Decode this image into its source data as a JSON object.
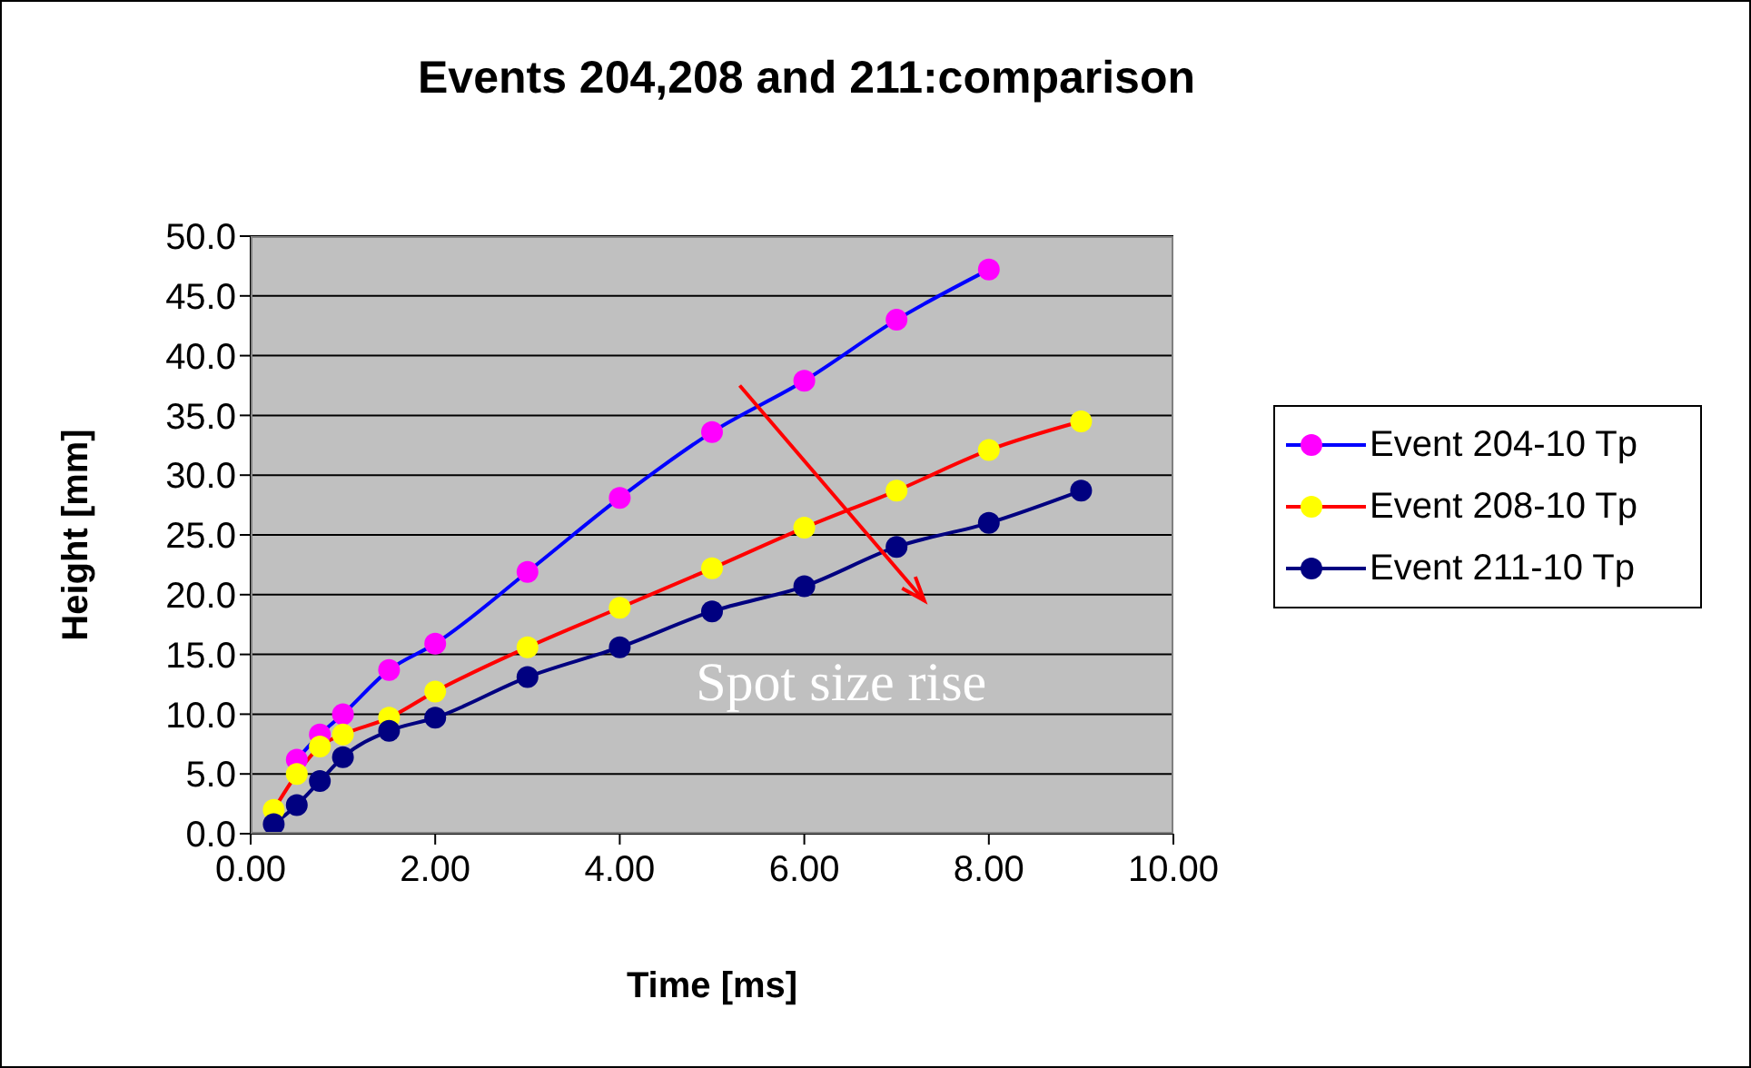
{
  "chart_data": {
    "type": "line",
    "title": "Events 204,208 and 211:comparison",
    "xlabel": "Time [ms]",
    "ylabel": "Height [mm]",
    "x": [
      0.25,
      0.5,
      0.75,
      1,
      1.5,
      2,
      3,
      4,
      5,
      6,
      7,
      8,
      9
    ],
    "series": [
      {
        "name": "Event 204-10 Tp",
        "color": "#0000ff",
        "colors": [
          "#ff00ff",
          "#ff00ff",
          "#ff00ff",
          "#ff00ff",
          "#ff00ff",
          "#ff00ff",
          "#ff00ff",
          "#ff00ff",
          "#ff00ff",
          "#ff00ff",
          "#ff00ff",
          "#ff00ff",
          "#ff00ff"
        ],
        "values": [
          null,
          6.2,
          8.3,
          10.0,
          13.7,
          15.9,
          21.9,
          28.1,
          33.6,
          37.9,
          43.0,
          47.2,
          null
        ]
      },
      {
        "name": "Event 208-10 Tp",
        "color": "#ff0000",
        "colors": [
          "#ffff00",
          "#ffff00",
          "#ffff00",
          "#ffff00",
          "#ffff00",
          "#ffff00",
          "#ffff00",
          "#ffff00",
          "#ffff00",
          "#ffff00",
          "#ffff00",
          "#ffff00",
          "#ffff00"
        ],
        "values": [
          2.0,
          5.0,
          7.3,
          8.3,
          9.7,
          11.9,
          15.6,
          18.9,
          22.2,
          25.6,
          28.7,
          32.1,
          34.5
        ]
      },
      {
        "name": "Event 211-10 Tp",
        "color": "#000080",
        "colors": [
          "#000080",
          "#000080",
          "#000080",
          "#000080",
          "#000080",
          "#000080",
          "#000080",
          "#000080",
          "#000080",
          "#000080",
          "#000080",
          "#000080",
          "#000080"
        ],
        "values": [
          0.8,
          2.4,
          4.4,
          6.4,
          8.6,
          9.7,
          13.1,
          15.6,
          18.6,
          20.7,
          24.0,
          26.0,
          28.7
        ]
      }
    ],
    "xlim": [
      0,
      10
    ],
    "xticks": [
      {
        "value": 0,
        "label": "0.00"
      },
      {
        "value": 2,
        "label": "2.00"
      },
      {
        "value": 4,
        "label": "4.00"
      },
      {
        "value": 6,
        "label": "6.00"
      },
      {
        "value": 8,
        "label": "8.00"
      },
      {
        "value": 10,
        "label": "10.00"
      }
    ],
    "ylim": [
      0,
      50
    ],
    "yticks": [
      {
        "value": 0,
        "label": "0.0"
      },
      {
        "value": 5,
        "label": "5.0"
      },
      {
        "value": 10,
        "label": "10.0"
      },
      {
        "value": 15,
        "label": "15.0"
      },
      {
        "value": 20,
        "label": "20.0"
      },
      {
        "value": 25,
        "label": "25.0"
      },
      {
        "value": 30,
        "label": "30.0"
      },
      {
        "value": 35,
        "label": "35.0"
      },
      {
        "value": 40,
        "label": "40.0"
      },
      {
        "value": 45,
        "label": "45.0"
      },
      {
        "value": 50,
        "label": "50.0"
      }
    ],
    "grid": "y",
    "legend": "right",
    "marker": "circle",
    "line_style": "solid",
    "annotations": [
      "Spot size rise"
    ]
  }
}
